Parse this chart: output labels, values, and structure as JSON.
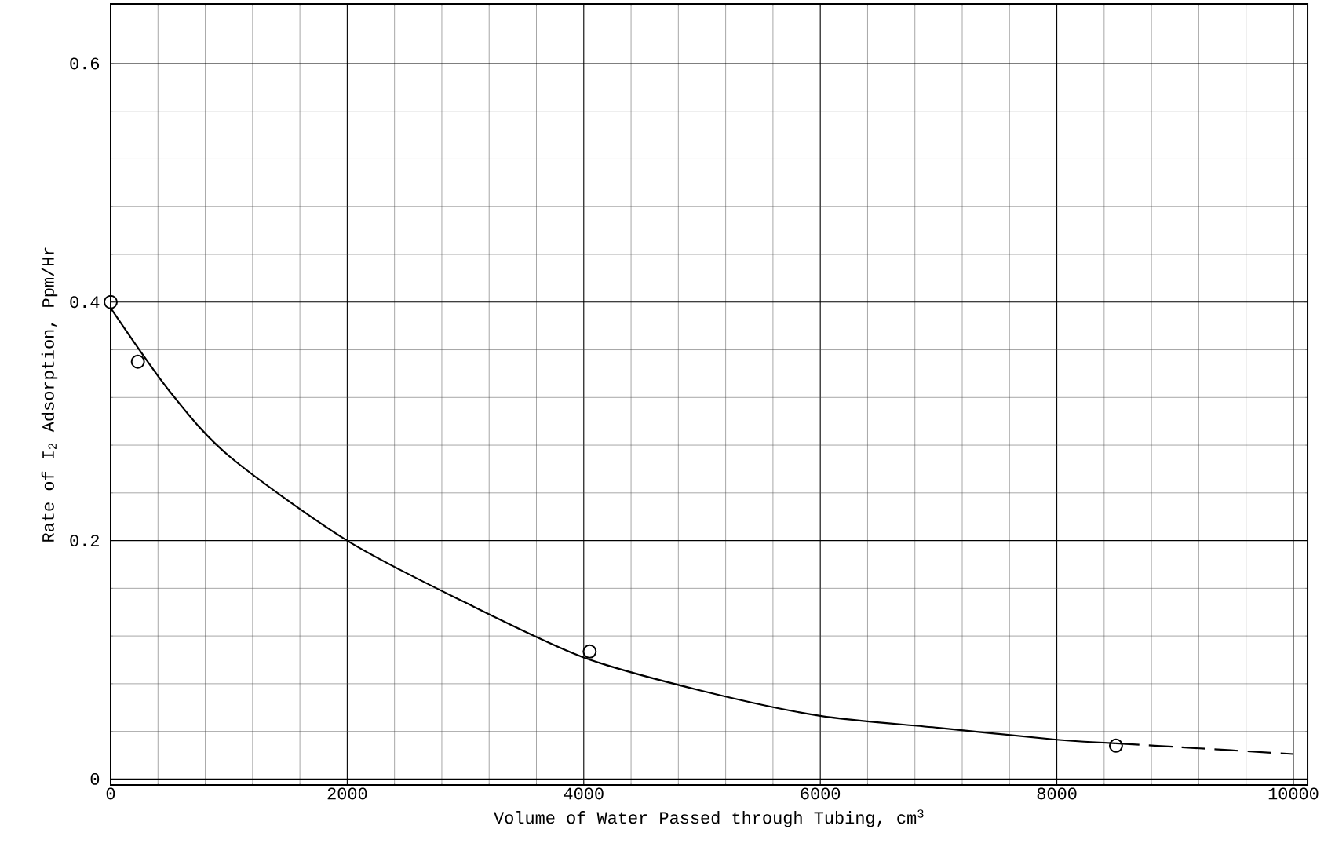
{
  "chart_data": {
    "type": "scatter",
    "xlabel": "Volume of Water Passed through Tubing, cm$^{3}$",
    "ylabel": "Rate of I$_{2}$ Adsorption, Ppm/Hr",
    "series": [
      {
        "color": "#000000",
        "marker": "circle",
        "x": [
          0,
          230,
          4050,
          8500
        ],
        "values": [
          0.4,
          0.35,
          0.107,
          0.028
        ]
      },
      {
        "type": "line",
        "color": "#000000",
        "marker": "none",
        "line_style": "solid",
        "x": [
          0,
          500,
          1000,
          2000,
          3000,
          4000,
          5000,
          6000,
          7000,
          8000,
          8500
        ],
        "values": [
          0.395,
          0.325,
          0.271,
          0.2,
          0.148,
          0.102,
          0.074,
          0.053,
          0.043,
          0.033,
          0.03
        ]
      },
      {
        "type": "line",
        "color": "#000000",
        "marker": "none",
        "line_style": "dashed",
        "x": [
          8500,
          9000,
          10000
        ],
        "values": [
          0.03,
          0.027,
          0.021
        ]
      }
    ],
    "xlim": [
      0,
      10120
    ],
    "ylim": [
      -0.005,
      0.65
    ],
    "xticks": [
      0,
      2000,
      4000,
      6000,
      8000,
      10000
    ],
    "yticks": [
      0,
      0.2,
      0.4,
      0.6
    ],
    "grid": true
  }
}
